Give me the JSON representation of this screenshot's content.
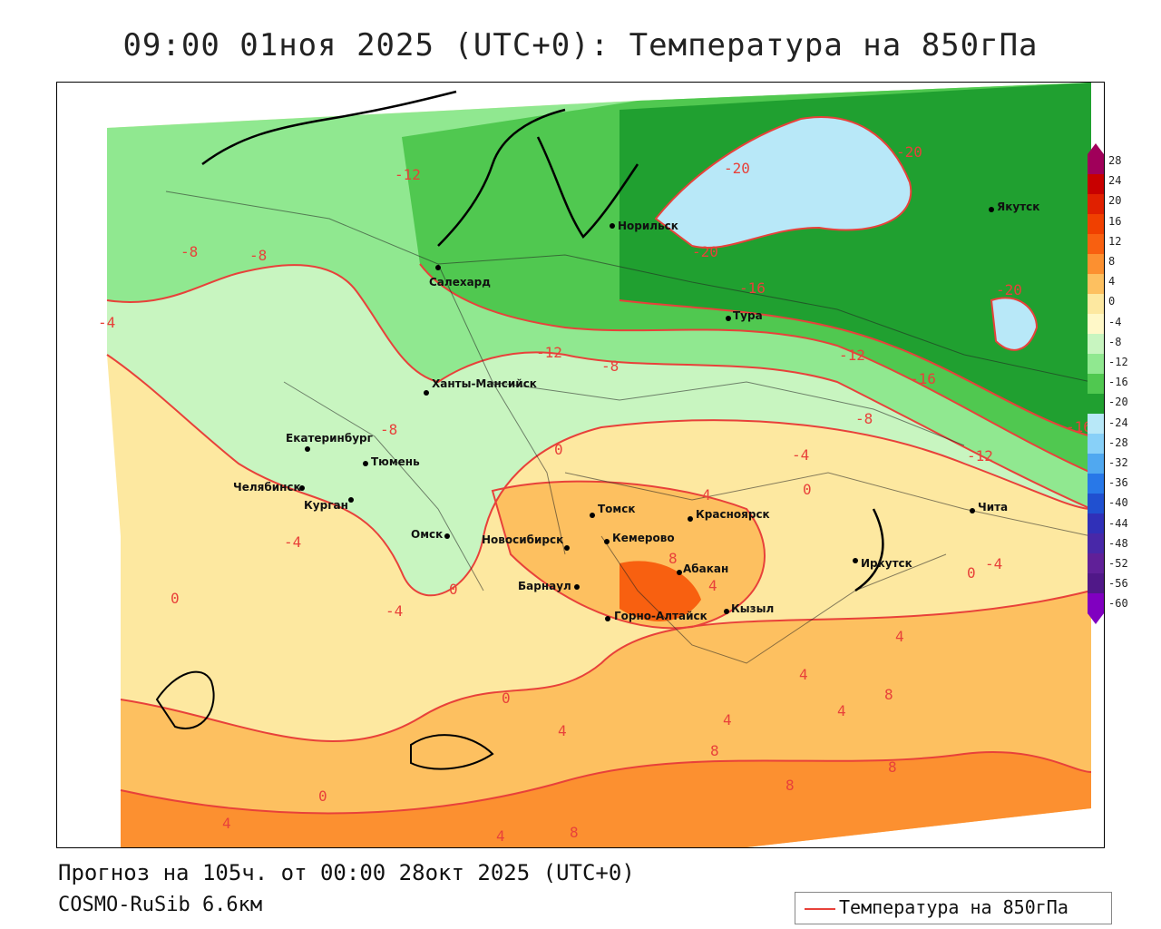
{
  "title": "09:00 01ноя 2025 (UTC+0): Температура на 850гПа",
  "footer": {
    "forecast": "Прогноз на 105ч. от 00:00 28окт 2025 (UTC+0)",
    "model": "COSMO-RuSib 6.6км"
  },
  "legend": {
    "label": "Температура на 850гПа",
    "color": "#e8413a"
  },
  "colorbar": {
    "ticks": [
      "28",
      "24",
      "20",
      "16",
      "12",
      "8",
      "4",
      "0",
      "-4",
      "-8",
      "-12",
      "-16",
      "-20",
      "-24",
      "-28",
      "-32",
      "-36",
      "-40",
      "-44",
      "-48",
      "-52",
      "-56",
      "-60"
    ],
    "colors": [
      "#a0005a",
      "#c80000",
      "#e02000",
      "#f04000",
      "#f86010",
      "#fc9030",
      "#fdc060",
      "#fde8a0",
      "#fff8c8",
      "#c8f5c0",
      "#90e890",
      "#50c850",
      "#20a030",
      "#b8e8f8",
      "#88d0f8",
      "#50a8f0",
      "#2878e8",
      "#2050d0",
      "#3030b8",
      "#4828a8",
      "#602098",
      "#501888",
      "#8000c0"
    ]
  },
  "cities": [
    {
      "name": "Норильск"
    },
    {
      "name": "Якутск"
    },
    {
      "name": "Салехард"
    },
    {
      "name": "Тура"
    },
    {
      "name": "Ханты-Мансийск"
    },
    {
      "name": "Екатеринбург"
    },
    {
      "name": "Тюмень"
    },
    {
      "name": "Челябинск"
    },
    {
      "name": "Курган"
    },
    {
      "name": "Омск"
    },
    {
      "name": "Томск"
    },
    {
      "name": "Красноярск"
    },
    {
      "name": "Новосибирск"
    },
    {
      "name": "Кемерово"
    },
    {
      "name": "Абакан"
    },
    {
      "name": "Барнаул"
    },
    {
      "name": "Горно-Алтайск"
    },
    {
      "name": "Кызыл"
    },
    {
      "name": "Иркутск"
    },
    {
      "name": "Чита"
    }
  ],
  "isotherm_labels": [
    "-20",
    "-20",
    "-20",
    "-20",
    "-16",
    "-16",
    "-16",
    "-12",
    "-12",
    "-12",
    "-12",
    "-8",
    "-8",
    "-8",
    "-8",
    "-8",
    "-4",
    "-4",
    "-4",
    "-4",
    "-4",
    "0",
    "0",
    "0",
    "0",
    "0",
    "0",
    "0",
    "4",
    "4",
    "4",
    "4",
    "4",
    "4",
    "4",
    "4",
    "4",
    "8",
    "8",
    "8",
    "8",
    "8",
    "8"
  ]
}
